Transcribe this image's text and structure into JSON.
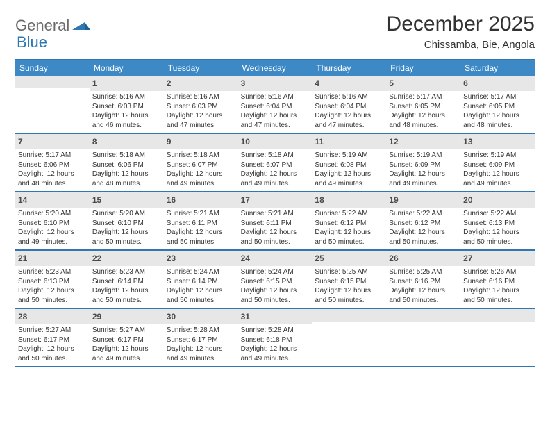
{
  "brand": {
    "part1": "General",
    "part2": "Blue"
  },
  "title": "December 2025",
  "location": "Chissamba, Bie, Angola",
  "colors": {
    "header_bg": "#3d89c6",
    "rule": "#2f77b3",
    "daynum_bg": "#e7e7e7",
    "text": "#333333",
    "brand_gray": "#6b6b6b",
    "brand_blue": "#2f77b3"
  },
  "dow": [
    "Sunday",
    "Monday",
    "Tuesday",
    "Wednesday",
    "Thursday",
    "Friday",
    "Saturday"
  ],
  "weeks": [
    [
      null,
      {
        "n": "1",
        "sr": "Sunrise: 5:16 AM",
        "ss": "Sunset: 6:03 PM",
        "d1": "Daylight: 12 hours",
        "d2": "and 46 minutes."
      },
      {
        "n": "2",
        "sr": "Sunrise: 5:16 AM",
        "ss": "Sunset: 6:03 PM",
        "d1": "Daylight: 12 hours",
        "d2": "and 47 minutes."
      },
      {
        "n": "3",
        "sr": "Sunrise: 5:16 AM",
        "ss": "Sunset: 6:04 PM",
        "d1": "Daylight: 12 hours",
        "d2": "and 47 minutes."
      },
      {
        "n": "4",
        "sr": "Sunrise: 5:16 AM",
        "ss": "Sunset: 6:04 PM",
        "d1": "Daylight: 12 hours",
        "d2": "and 47 minutes."
      },
      {
        "n": "5",
        "sr": "Sunrise: 5:17 AM",
        "ss": "Sunset: 6:05 PM",
        "d1": "Daylight: 12 hours",
        "d2": "and 48 minutes."
      },
      {
        "n": "6",
        "sr": "Sunrise: 5:17 AM",
        "ss": "Sunset: 6:05 PM",
        "d1": "Daylight: 12 hours",
        "d2": "and 48 minutes."
      }
    ],
    [
      {
        "n": "7",
        "sr": "Sunrise: 5:17 AM",
        "ss": "Sunset: 6:06 PM",
        "d1": "Daylight: 12 hours",
        "d2": "and 48 minutes."
      },
      {
        "n": "8",
        "sr": "Sunrise: 5:18 AM",
        "ss": "Sunset: 6:06 PM",
        "d1": "Daylight: 12 hours",
        "d2": "and 48 minutes."
      },
      {
        "n": "9",
        "sr": "Sunrise: 5:18 AM",
        "ss": "Sunset: 6:07 PM",
        "d1": "Daylight: 12 hours",
        "d2": "and 49 minutes."
      },
      {
        "n": "10",
        "sr": "Sunrise: 5:18 AM",
        "ss": "Sunset: 6:07 PM",
        "d1": "Daylight: 12 hours",
        "d2": "and 49 minutes."
      },
      {
        "n": "11",
        "sr": "Sunrise: 5:19 AM",
        "ss": "Sunset: 6:08 PM",
        "d1": "Daylight: 12 hours",
        "d2": "and 49 minutes."
      },
      {
        "n": "12",
        "sr": "Sunrise: 5:19 AM",
        "ss": "Sunset: 6:09 PM",
        "d1": "Daylight: 12 hours",
        "d2": "and 49 minutes."
      },
      {
        "n": "13",
        "sr": "Sunrise: 5:19 AM",
        "ss": "Sunset: 6:09 PM",
        "d1": "Daylight: 12 hours",
        "d2": "and 49 minutes."
      }
    ],
    [
      {
        "n": "14",
        "sr": "Sunrise: 5:20 AM",
        "ss": "Sunset: 6:10 PM",
        "d1": "Daylight: 12 hours",
        "d2": "and 49 minutes."
      },
      {
        "n": "15",
        "sr": "Sunrise: 5:20 AM",
        "ss": "Sunset: 6:10 PM",
        "d1": "Daylight: 12 hours",
        "d2": "and 50 minutes."
      },
      {
        "n": "16",
        "sr": "Sunrise: 5:21 AM",
        "ss": "Sunset: 6:11 PM",
        "d1": "Daylight: 12 hours",
        "d2": "and 50 minutes."
      },
      {
        "n": "17",
        "sr": "Sunrise: 5:21 AM",
        "ss": "Sunset: 6:11 PM",
        "d1": "Daylight: 12 hours",
        "d2": "and 50 minutes."
      },
      {
        "n": "18",
        "sr": "Sunrise: 5:22 AM",
        "ss": "Sunset: 6:12 PM",
        "d1": "Daylight: 12 hours",
        "d2": "and 50 minutes."
      },
      {
        "n": "19",
        "sr": "Sunrise: 5:22 AM",
        "ss": "Sunset: 6:12 PM",
        "d1": "Daylight: 12 hours",
        "d2": "and 50 minutes."
      },
      {
        "n": "20",
        "sr": "Sunrise: 5:22 AM",
        "ss": "Sunset: 6:13 PM",
        "d1": "Daylight: 12 hours",
        "d2": "and 50 minutes."
      }
    ],
    [
      {
        "n": "21",
        "sr": "Sunrise: 5:23 AM",
        "ss": "Sunset: 6:13 PM",
        "d1": "Daylight: 12 hours",
        "d2": "and 50 minutes."
      },
      {
        "n": "22",
        "sr": "Sunrise: 5:23 AM",
        "ss": "Sunset: 6:14 PM",
        "d1": "Daylight: 12 hours",
        "d2": "and 50 minutes."
      },
      {
        "n": "23",
        "sr": "Sunrise: 5:24 AM",
        "ss": "Sunset: 6:14 PM",
        "d1": "Daylight: 12 hours",
        "d2": "and 50 minutes."
      },
      {
        "n": "24",
        "sr": "Sunrise: 5:24 AM",
        "ss": "Sunset: 6:15 PM",
        "d1": "Daylight: 12 hours",
        "d2": "and 50 minutes."
      },
      {
        "n": "25",
        "sr": "Sunrise: 5:25 AM",
        "ss": "Sunset: 6:15 PM",
        "d1": "Daylight: 12 hours",
        "d2": "and 50 minutes."
      },
      {
        "n": "26",
        "sr": "Sunrise: 5:25 AM",
        "ss": "Sunset: 6:16 PM",
        "d1": "Daylight: 12 hours",
        "d2": "and 50 minutes."
      },
      {
        "n": "27",
        "sr": "Sunrise: 5:26 AM",
        "ss": "Sunset: 6:16 PM",
        "d1": "Daylight: 12 hours",
        "d2": "and 50 minutes."
      }
    ],
    [
      {
        "n": "28",
        "sr": "Sunrise: 5:27 AM",
        "ss": "Sunset: 6:17 PM",
        "d1": "Daylight: 12 hours",
        "d2": "and 50 minutes."
      },
      {
        "n": "29",
        "sr": "Sunrise: 5:27 AM",
        "ss": "Sunset: 6:17 PM",
        "d1": "Daylight: 12 hours",
        "d2": "and 49 minutes."
      },
      {
        "n": "30",
        "sr": "Sunrise: 5:28 AM",
        "ss": "Sunset: 6:17 PM",
        "d1": "Daylight: 12 hours",
        "d2": "and 49 minutes."
      },
      {
        "n": "31",
        "sr": "Sunrise: 5:28 AM",
        "ss": "Sunset: 6:18 PM",
        "d1": "Daylight: 12 hours",
        "d2": "and 49 minutes."
      },
      null,
      null,
      null
    ]
  ]
}
